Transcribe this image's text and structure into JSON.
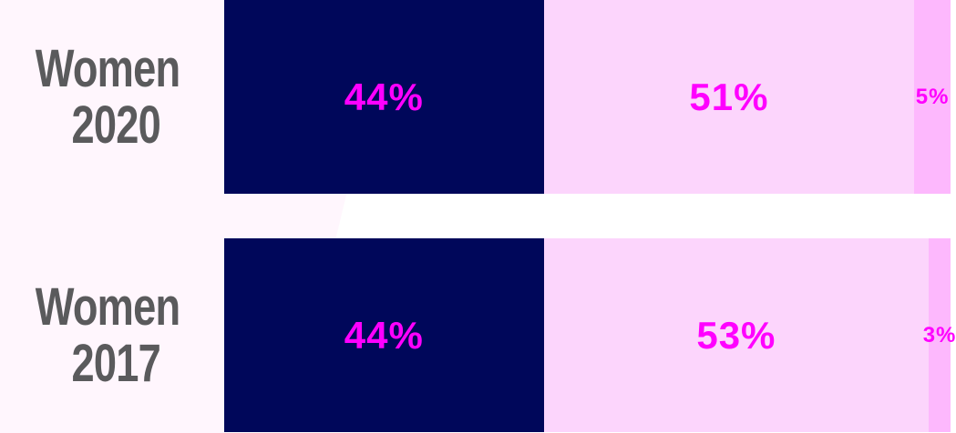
{
  "chart_data": {
    "type": "stacked-bar",
    "orientation": "horizontal",
    "categories": [
      "Women 2020",
      "Women 2017"
    ],
    "xlim": [
      0,
      100
    ],
    "series": [
      {
        "color": "#00075a",
        "values": [
          44,
          44
        ],
        "value_labels": [
          "44%",
          "44%"
        ]
      },
      {
        "color": "#fcd5fc",
        "values": [
          51,
          53
        ],
        "value_labels": [
          "51%",
          "53%"
        ]
      },
      {
        "color": "#fdb8fd",
        "values": [
          5,
          3
        ],
        "value_labels": [
          "5%",
          "3%"
        ]
      }
    ],
    "label_color": "#ff00ff"
  }
}
